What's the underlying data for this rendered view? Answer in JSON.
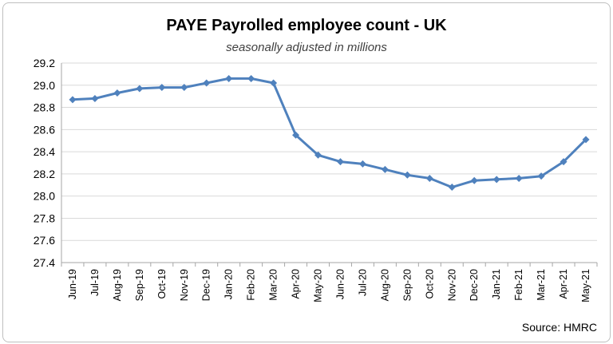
{
  "chart_data": {
    "type": "line",
    "title": "PAYE Payrolled employee count - UK",
    "subtitle": "seasonally adjusted in millions",
    "source": "Source: HMRC",
    "categories": [
      "Jun-19",
      "Jul-19",
      "Aug-19",
      "Sep-19",
      "Oct-19",
      "Nov-19",
      "Dec-19",
      "Jan-20",
      "Feb-20",
      "Mar-20",
      "Apr-20",
      "May-20",
      "Jun-20",
      "Jul-20",
      "Aug-20",
      "Sep-20",
      "Oct-20",
      "Nov-20",
      "Dec-20",
      "Jan-21",
      "Feb-21",
      "Mar-21",
      "Apr-21",
      "May-21"
    ],
    "series": [
      {
        "values": [
          28.87,
          28.88,
          28.93,
          28.97,
          28.98,
          28.98,
          29.02,
          29.06,
          29.06,
          29.02,
          28.55,
          28.37,
          28.31,
          28.29,
          28.24,
          28.19,
          28.16,
          28.08,
          28.14,
          28.15,
          28.16,
          28.18,
          28.31,
          28.51
        ],
        "color": "#4f81bd",
        "marker": "diamond"
      }
    ],
    "xlabel": "",
    "ylabel": "",
    "ylim": [
      27.4,
      29.2
    ],
    "yticks": [
      "27.4",
      "27.6",
      "27.8",
      "28.0",
      "28.2",
      "28.4",
      "28.6",
      "28.8",
      "29.0",
      "29.2"
    ],
    "grid": true,
    "legend": "none"
  }
}
